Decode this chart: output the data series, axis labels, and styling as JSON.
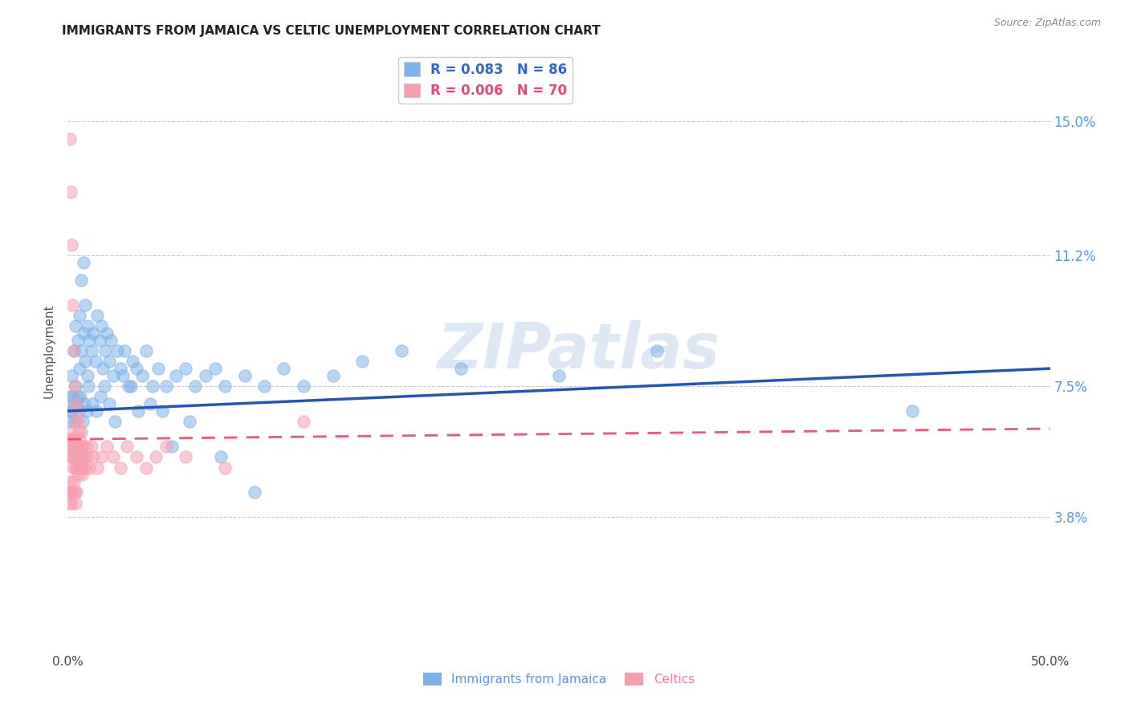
{
  "title": "IMMIGRANTS FROM JAMAICA VS CELTIC UNEMPLOYMENT CORRELATION CHART",
  "source": "Source: ZipAtlas.com",
  "ylabel": "Unemployment",
  "ytick_labels": [
    "3.8%",
    "7.5%",
    "11.2%",
    "15.0%"
  ],
  "ytick_values": [
    3.8,
    7.5,
    11.2,
    15.0
  ],
  "xmin": 0.0,
  "xmax": 50.0,
  "ymin": 0.0,
  "ymax": 17.0,
  "legend_series1": {
    "label": "Immigrants from Jamaica",
    "R": "0.083",
    "N": "86",
    "color": "#7eb3e8"
  },
  "legend_series2": {
    "label": "Celtics",
    "R": "0.006",
    "N": "70",
    "color": "#f5a0b0"
  },
  "watermark": "ZIPatlas",
  "background_color": "#ffffff",
  "grid_color": "#cccccc",
  "jamaica_x": [
    0.1,
    0.1,
    0.2,
    0.2,
    0.3,
    0.3,
    0.4,
    0.4,
    0.5,
    0.5,
    0.6,
    0.6,
    0.7,
    0.7,
    0.8,
    0.8,
    0.9,
    0.9,
    1.0,
    1.0,
    1.1,
    1.2,
    1.3,
    1.4,
    1.5,
    1.6,
    1.7,
    1.8,
    1.9,
    2.0,
    2.1,
    2.2,
    2.3,
    2.5,
    2.7,
    2.9,
    3.1,
    3.3,
    3.5,
    3.8,
    4.0,
    4.3,
    4.6,
    5.0,
    5.5,
    6.0,
    6.5,
    7.0,
    7.5,
    8.0,
    9.0,
    10.0,
    11.0,
    12.0,
    13.5,
    15.0,
    17.0,
    20.0,
    25.0,
    30.0,
    0.15,
    0.25,
    0.35,
    0.45,
    0.55,
    0.65,
    0.75,
    0.85,
    0.95,
    1.05,
    1.25,
    1.45,
    1.65,
    1.85,
    2.1,
    2.4,
    2.8,
    3.2,
    3.6,
    4.2,
    4.8,
    5.3,
    6.2,
    7.8,
    9.5,
    43.0
  ],
  "jamaica_y": [
    7.2,
    6.5,
    7.8,
    6.8,
    8.5,
    7.0,
    9.2,
    7.5,
    8.8,
    7.2,
    9.5,
    8.0,
    10.5,
    8.5,
    11.0,
    9.0,
    9.8,
    8.2,
    9.2,
    7.8,
    8.8,
    8.5,
    9.0,
    8.2,
    9.5,
    8.8,
    9.2,
    8.0,
    8.5,
    9.0,
    8.2,
    8.8,
    7.8,
    8.5,
    8.0,
    8.5,
    7.5,
    8.2,
    8.0,
    7.8,
    8.5,
    7.5,
    8.0,
    7.5,
    7.8,
    8.0,
    7.5,
    7.8,
    8.0,
    7.5,
    7.8,
    7.5,
    8.0,
    7.5,
    7.8,
    8.2,
    8.5,
    8.0,
    7.8,
    8.5,
    6.8,
    7.2,
    6.5,
    7.0,
    6.8,
    7.2,
    6.5,
    7.0,
    6.8,
    7.5,
    7.0,
    6.8,
    7.2,
    7.5,
    7.0,
    6.5,
    7.8,
    7.5,
    6.8,
    7.0,
    6.8,
    5.8,
    6.5,
    5.5,
    4.5,
    6.8
  ],
  "celtic_x": [
    0.05,
    0.08,
    0.1,
    0.12,
    0.15,
    0.15,
    0.18,
    0.2,
    0.2,
    0.22,
    0.25,
    0.25,
    0.28,
    0.3,
    0.3,
    0.32,
    0.35,
    0.35,
    0.38,
    0.4,
    0.4,
    0.42,
    0.45,
    0.45,
    0.48,
    0.5,
    0.5,
    0.52,
    0.55,
    0.55,
    0.58,
    0.6,
    0.62,
    0.65,
    0.68,
    0.7,
    0.72,
    0.75,
    0.78,
    0.8,
    0.85,
    0.9,
    0.95,
    1.0,
    1.1,
    1.2,
    1.3,
    1.5,
    1.7,
    2.0,
    2.3,
    2.7,
    3.0,
    3.5,
    4.0,
    4.5,
    5.0,
    6.0,
    8.0,
    12.0,
    0.05,
    0.08,
    0.1,
    0.15,
    0.2,
    0.25,
    0.3,
    0.35,
    0.4,
    0.45
  ],
  "celtic_y": [
    6.0,
    5.5,
    14.5,
    6.2,
    13.0,
    5.8,
    5.5,
    11.5,
    6.0,
    5.8,
    9.8,
    5.5,
    5.2,
    8.5,
    6.0,
    5.8,
    7.5,
    5.5,
    5.2,
    7.0,
    5.8,
    6.5,
    6.8,
    5.2,
    5.5,
    6.5,
    5.0,
    5.8,
    6.2,
    5.5,
    5.2,
    6.0,
    5.8,
    5.5,
    5.2,
    6.2,
    5.0,
    5.5,
    5.8,
    5.2,
    5.5,
    5.2,
    5.8,
    5.5,
    5.2,
    5.8,
    5.5,
    5.2,
    5.5,
    5.8,
    5.5,
    5.2,
    5.8,
    5.5,
    5.2,
    5.5,
    5.8,
    5.5,
    5.2,
    6.5,
    4.5,
    4.2,
    4.8,
    4.5,
    4.2,
    4.5,
    4.8,
    4.5,
    4.2,
    4.5
  ],
  "jamaica_trend_x": [
    0.0,
    50.0
  ],
  "jamaica_trend_y": [
    6.8,
    8.0
  ],
  "celtic_trend_x": [
    0.0,
    50.0
  ],
  "celtic_trend_y": [
    6.0,
    6.3
  ]
}
